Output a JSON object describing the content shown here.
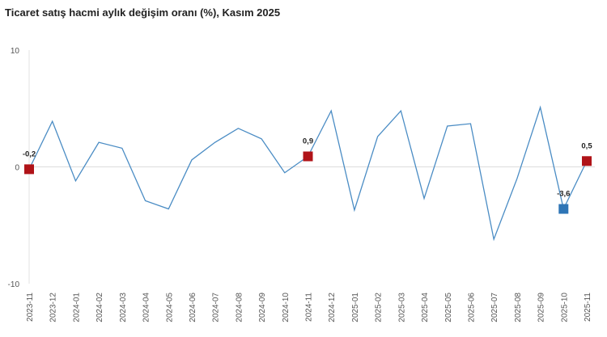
{
  "chart_data": {
    "type": "line",
    "title": "Ticaret satış hacmi aylık değişim oranı (%), Kasım 2025",
    "xlabel": "",
    "ylabel": "",
    "ylim": [
      -10,
      10
    ],
    "yticks": [
      "10",
      "0",
      "-10"
    ],
    "grid": "zero line only",
    "legend": "none",
    "categories": [
      "2023-11",
      "2023-12",
      "2024-01",
      "2024-02",
      "2024-03",
      "2024-04",
      "2024-05",
      "2024-06",
      "2024-07",
      "2024-08",
      "2024-09",
      "2024-10",
      "2024-11",
      "2024-12",
      "2025-01",
      "2025-02",
      "2025-03",
      "2025-04",
      "2025-05",
      "2025-06",
      "2025-07",
      "2025-08",
      "2025-09",
      "2025-10",
      "2025-11"
    ],
    "series": [
      {
        "values": [
          -0.2,
          3.9,
          -1.2,
          2.1,
          1.6,
          -2.9,
          -3.6,
          0.6,
          2.1,
          3.3,
          2.4,
          -0.5,
          0.9,
          4.8,
          -3.7,
          2.6,
          4.8,
          -2.7,
          3.5,
          3.7,
          -6.2,
          -1.0,
          5.1,
          -3.6,
          0.5
        ],
        "color": "#4a8cc4"
      }
    ],
    "markers": [
      {
        "index": 0,
        "label": "-0,2",
        "color": "#b01318"
      },
      {
        "index": 12,
        "label": "0,9",
        "color": "#b01318"
      },
      {
        "index": 23,
        "label": "-3,6",
        "color": "#2e75b6"
      },
      {
        "index": 24,
        "label": "0,5",
        "color": "#b01318"
      }
    ]
  }
}
